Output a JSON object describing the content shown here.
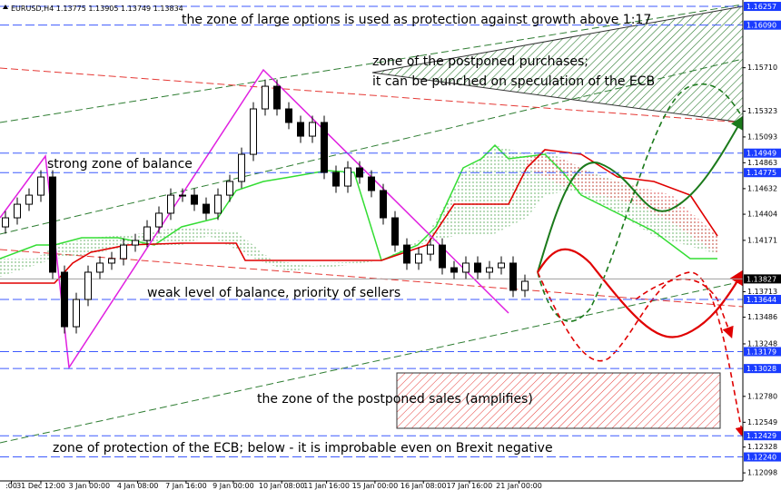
{
  "chart_data": {
    "type": "candlestick",
    "symbol": "EURUSD,H4",
    "quote": [
      1.13775,
      1.13905,
      1.13749,
      1.13834
    ],
    "annotations": [
      "the zone of large options is used as protection against growth above 1:17",
      "zone of the postponed purchases;",
      "it can be punched on speculation of the ECB",
      "strong zone of balance",
      "weak level of balance, priority of sellers",
      "the zone of the postponed sales (amplifies)",
      "zone of protection of the ECB;   below - it is improbable even on Brexit negative"
    ],
    "ylim": [
      1.12026,
      1.16314
    ],
    "yticks": [
      {
        "value": 1.1571,
        "label": "1.15710"
      },
      1.15323,
      1.15093,
      1.14863,
      1.14632,
      1.14404,
      1.14171,
      1.13713,
      1.13486,
      1.13248,
      {
        "value": 1.1278,
        "label": "1.12780"
      },
      1.12549,
      1.12328,
      1.12098
    ],
    "levels": [
      1.16257,
      {
        "value": 1.1609,
        "label": "1.16090"
      },
      1.14949,
      1.14775,
      1.13827,
      1.13644,
      1.13179,
      1.13028,
      1.12429,
      {
        "value": 1.1224,
        "label": "1.12240"
      }
    ],
    "xticks": [
      {
        "value": 0.5,
        "label": ":00"
      },
      {
        "value": 3,
        "label": "31 Dec 12:00"
      },
      {
        "value": 7.1,
        "label": "3 Jan 00:00"
      },
      {
        "value": 11.2,
        "label": "4 Jan 08:00"
      },
      {
        "value": 15.3,
        "label": "7 Jan 16:00"
      },
      {
        "value": 19.3,
        "label": "9 Jan 00:00"
      },
      {
        "value": 23.4,
        "label": "10 Jan 08:00"
      },
      {
        "value": 27.2,
        "label": "11 Jan 16:00"
      },
      {
        "value": 31.3,
        "label": "15 Jan 00:00"
      },
      {
        "value": 35.4,
        "label": "16 Jan 08:00"
      },
      {
        "value": 39.3,
        "label": "17 Jan 16:00"
      },
      {
        "value": 43.5,
        "label": "21 Jan 00:00"
      }
    ],
    "open": [
      1.14291,
      1.14372,
      1.14493,
      1.14574,
      1.14736,
      1.13887,
      1.13401,
      1.13644,
      1.13887,
      1.13968,
      1.14008,
      1.14129,
      1.1417,
      1.14291,
      1.14413,
      1.14574,
      1.14574,
      1.14493,
      1.14413,
      1.14574,
      1.14696,
      1.14938,
      1.15343,
      1.15545,
      1.15343,
      1.15222,
      1.151,
      1.15222,
      1.14777,
      1.14655,
      1.14817,
      1.14736,
      1.14615,
      1.14372,
      1.14129,
      1.13968,
      1.14048,
      1.14129,
      1.13927,
      1.13887,
      1.13968,
      1.13887,
      1.13927,
      1.13968,
      1.13725
    ],
    "high": [
      1.14432,
      1.14553,
      1.14634,
      1.14796,
      1.14796,
      1.13947,
      1.13704,
      1.13947,
      1.14028,
      1.14068,
      1.14189,
      1.1423,
      1.14351,
      1.14473,
      1.14634,
      1.14634,
      1.14634,
      1.14553,
      1.14634,
      1.14756,
      1.14998,
      1.15403,
      1.15605,
      1.15605,
      1.15403,
      1.15282,
      1.15282,
      1.15282,
      1.14837,
      1.14877,
      1.14877,
      1.14796,
      1.14675,
      1.14432,
      1.14189,
      1.14108,
      1.14189,
      1.14189,
      1.13987,
      1.14028,
      1.14028,
      1.13987,
      1.14028,
      1.14028,
      1.13866
    ],
    "low": [
      1.14231,
      1.14312,
      1.14433,
      1.14514,
      1.13827,
      1.13341,
      1.13341,
      1.13584,
      1.13827,
      1.13908,
      1.13948,
      1.14069,
      1.1411,
      1.14231,
      1.14353,
      1.14514,
      1.14433,
      1.14353,
      1.14353,
      1.14514,
      1.14636,
      1.14878,
      1.15283,
      1.15283,
      1.15162,
      1.1504,
      1.1504,
      1.14717,
      1.14595,
      1.14595,
      1.14676,
      1.14555,
      1.14312,
      1.14069,
      1.13908,
      1.13908,
      1.13988,
      1.13867,
      1.13827,
      1.13827,
      1.13827,
      1.13827,
      1.13867,
      1.13665,
      1.13665
    ],
    "close": [
      1.14372,
      1.14493,
      1.14574,
      1.14736,
      1.13887,
      1.13401,
      1.13644,
      1.13887,
      1.13968,
      1.14008,
      1.14129,
      1.1417,
      1.14291,
      1.14413,
      1.14574,
      1.14574,
      1.14493,
      1.14413,
      1.14574,
      1.14696,
      1.14938,
      1.15343,
      1.15545,
      1.15343,
      1.15222,
      1.151,
      1.15222,
      1.14777,
      1.14655,
      1.14817,
      1.14736,
      1.14615,
      1.14372,
      1.14129,
      1.13968,
      1.14048,
      1.14129,
      1.13927,
      1.13887,
      1.13968,
      1.13887,
      1.13927,
      1.13968,
      1.13725,
      1.13806
    ]
  }
}
